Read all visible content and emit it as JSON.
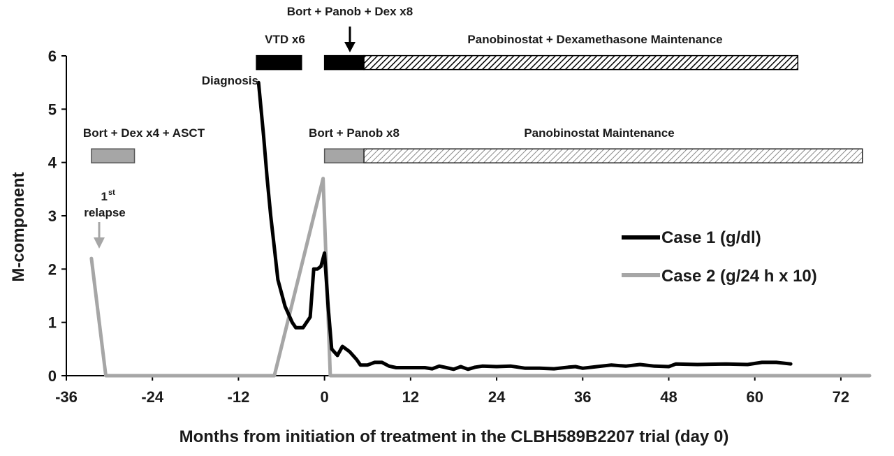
{
  "chart_data": {
    "type": "line",
    "xlabel": "Months from initiation of treatment in the CLBH589B2207 trial (day 0)",
    "ylabel": "M-component",
    "xlim": [
      -36,
      76
    ],
    "ylim": [
      0,
      6
    ],
    "x_ticks": [
      "-36",
      "-24",
      "-12",
      "0",
      "12",
      "24",
      "36",
      "48",
      "60",
      "72"
    ],
    "y_ticks": [
      "0",
      "1",
      "2",
      "3",
      "4",
      "5",
      "6"
    ],
    "grid": false,
    "legend_position": "right",
    "series": [
      {
        "name": "Case 1 (g/dl)",
        "color": "#000000",
        "points": [
          [
            -9.2,
            5.5
          ],
          [
            -8.5,
            4.5
          ],
          [
            -8,
            3.7
          ],
          [
            -7.5,
            3.0
          ],
          [
            -7,
            2.4
          ],
          [
            -6.5,
            1.8
          ],
          [
            -5.5,
            1.3
          ],
          [
            -4.5,
            1.0
          ],
          [
            -4,
            0.9
          ],
          [
            -3,
            0.9
          ],
          [
            -2,
            1.1
          ],
          [
            -1.5,
            2.0
          ],
          [
            -1,
            2.0
          ],
          [
            -0.5,
            2.05
          ],
          [
            0,
            2.3
          ],
          [
            0.5,
            1.3
          ],
          [
            1,
            0.5
          ],
          [
            1.8,
            0.38
          ],
          [
            2.5,
            0.55
          ],
          [
            3.5,
            0.45
          ],
          [
            4.5,
            0.3
          ],
          [
            5,
            0.2
          ],
          [
            6,
            0.2
          ],
          [
            7,
            0.25
          ],
          [
            8,
            0.25
          ],
          [
            9,
            0.18
          ],
          [
            10,
            0.15
          ],
          [
            12,
            0.15
          ],
          [
            14,
            0.15
          ],
          [
            15,
            0.13
          ],
          [
            16,
            0.18
          ],
          [
            17,
            0.15
          ],
          [
            18,
            0.12
          ],
          [
            19,
            0.17
          ],
          [
            20,
            0.12
          ],
          [
            21,
            0.16
          ],
          [
            22,
            0.18
          ],
          [
            24,
            0.17
          ],
          [
            26,
            0.18
          ],
          [
            28,
            0.14
          ],
          [
            30,
            0.14
          ],
          [
            32,
            0.13
          ],
          [
            34,
            0.16
          ],
          [
            35,
            0.17
          ],
          [
            36,
            0.14
          ],
          [
            38,
            0.17
          ],
          [
            40,
            0.2
          ],
          [
            42,
            0.18
          ],
          [
            44,
            0.21
          ],
          [
            46,
            0.18
          ],
          [
            48,
            0.17
          ],
          [
            49,
            0.22
          ],
          [
            52,
            0.21
          ],
          [
            56,
            0.22
          ],
          [
            59,
            0.21
          ],
          [
            61,
            0.25
          ],
          [
            63,
            0.25
          ],
          [
            65,
            0.22
          ]
        ]
      },
      {
        "name": "Case 2 (g/24 h x 10)",
        "color": "#a6a6a6",
        "points": [
          [
            -32.5,
            2.2
          ],
          [
            -30.5,
            0
          ],
          [
            -7,
            0
          ],
          [
            -0.2,
            3.7
          ],
          [
            0.8,
            0
          ],
          [
            76,
            0
          ]
        ]
      }
    ],
    "treatment_bars": [
      {
        "label": "VTD x6",
        "start": -9.5,
        "end": -3.2,
        "level": 5.9,
        "fill": "black"
      },
      {
        "label": "Bort + Panob + Dex x8",
        "start": 0,
        "end": 5.5,
        "level": 5.9,
        "fill": "black"
      },
      {
        "label": "Panobinostat + Dexamethasone Maintenance",
        "start": 5.5,
        "end": 66,
        "level": 5.9,
        "fill": "hatch-black"
      },
      {
        "label": "Bort + Dex x4 + ASCT",
        "start": -32.5,
        "end": -26.5,
        "level": 4.15,
        "fill": "gray"
      },
      {
        "label": "Bort + Panob x8",
        "start": 0,
        "end": 5.5,
        "level": 4.15,
        "fill": "gray"
      },
      {
        "label": "Panobinostat Maintenance",
        "start": 5.5,
        "end": 75,
        "level": 4.15,
        "fill": "hatch-gray"
      }
    ],
    "annotations": {
      "diagnosis": "Diagnosis",
      "relapse_main": "1",
      "relapse_sup": "st",
      "relapse_word": "relapse"
    }
  }
}
